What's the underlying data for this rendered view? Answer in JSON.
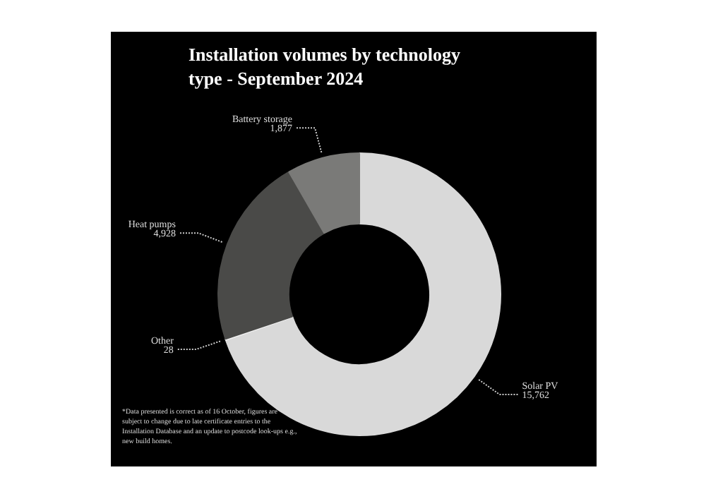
{
  "chart_data": {
    "type": "donut",
    "title": "Installation volumes by technology type - September 2024",
    "categories": [
      "Solar PV",
      "Other",
      "Heat pumps",
      "Battery storage"
    ],
    "values": [
      15762,
      28,
      4928,
      1877
    ],
    "value_labels": [
      "15,762",
      "28",
      "4,928",
      "1,877"
    ],
    "colors": [
      "#d9d9d9",
      "#f2f2f2",
      "#4a4a48",
      "#7a7a78"
    ],
    "annotations": [
      "*Data presented is correct as of 16 October, figures are subject to change due to late certificate entries to the Installation Database and an update to postcode look-ups e.g., new build homes."
    ]
  }
}
